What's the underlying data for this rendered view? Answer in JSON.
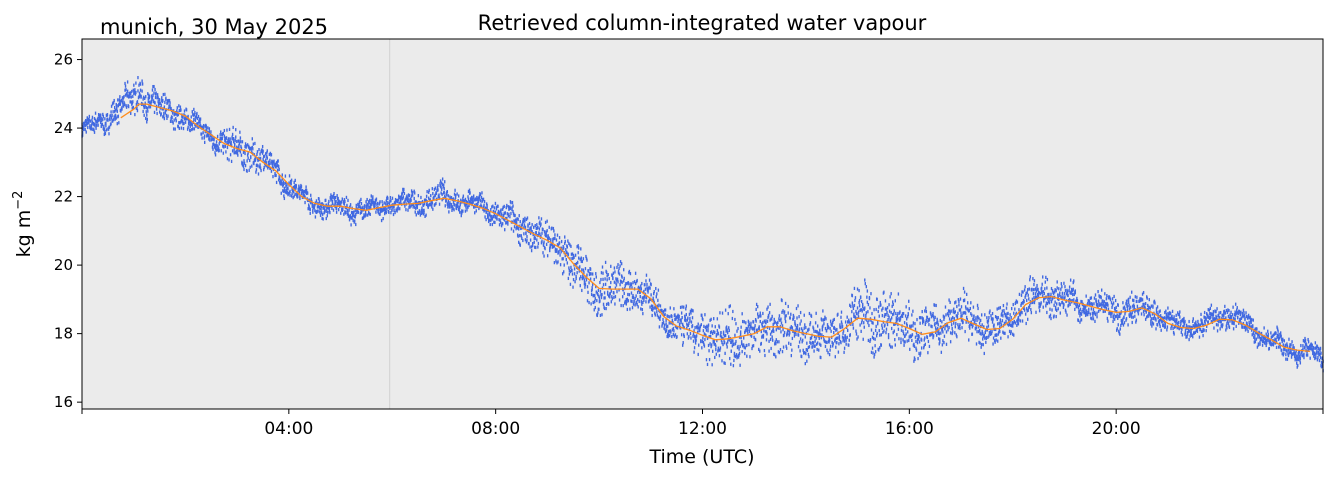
{
  "chart_data": {
    "type": "scatter",
    "title": "Retrieved column-integrated water vapour",
    "subtitle": "munich, 30 May 2025",
    "xlabel": "Time (UTC)",
    "ylabel_base": "kg m",
    "ylabel_exp": "−2",
    "xlim": [
      0,
      24
    ],
    "ylim": [
      15.8,
      26.6
    ],
    "yticks": [
      16,
      18,
      20,
      22,
      24,
      26
    ],
    "ytick_labels": [
      "16",
      "18",
      "20",
      "22",
      "24",
      "26"
    ],
    "xticks": [
      4,
      8,
      12,
      16,
      20
    ],
    "xtick_labels": [
      "04:00",
      "08:00",
      "12:00",
      "16:00",
      "20:00"
    ],
    "minor_xticks": [
      0,
      24
    ],
    "grid": false,
    "background": "#ebebeb",
    "vline_x": 5.95,
    "colors": {
      "raw": "#4169e1",
      "smooth": "#ff8c1a"
    },
    "series": [
      {
        "kind": "raw-scatter",
        "x": [
          0.0,
          0.25,
          0.5,
          0.75,
          1.0,
          1.1,
          1.25,
          1.5,
          1.75,
          2.0,
          2.25,
          2.5,
          2.75,
          3.0,
          3.25,
          3.5,
          3.75,
          4.0,
          4.25,
          4.5,
          4.75,
          5.0,
          5.25,
          5.5,
          5.75,
          6.0,
          6.25,
          6.5,
          6.75,
          7.0,
          7.25,
          7.5,
          7.75,
          8.0,
          8.25,
          8.5,
          8.75,
          9.0,
          9.25,
          9.5,
          9.75,
          10.0,
          10.25,
          10.5,
          10.75,
          11.0,
          11.25,
          11.5,
          11.75,
          12.0,
          12.25,
          12.5,
          12.75,
          13.0,
          13.25,
          13.5,
          13.75,
          14.0,
          14.25,
          14.5,
          14.75,
          15.0,
          15.25,
          15.5,
          15.75,
          16.0,
          16.25,
          16.5,
          16.75,
          17.0,
          17.25,
          17.5,
          17.75,
          18.0,
          18.25,
          18.5,
          18.75,
          19.0,
          19.25,
          19.5,
          19.75,
          20.0,
          20.25,
          20.5,
          20.75,
          21.0,
          21.25,
          21.5,
          21.75,
          22.0,
          22.25,
          22.5,
          22.75,
          23.0,
          23.25,
          23.5,
          23.75,
          24.0
        ],
        "y": [
          23.9,
          24.1,
          24.3,
          24.6,
          24.9,
          25.1,
          24.8,
          24.6,
          24.5,
          24.3,
          24.0,
          23.8,
          23.5,
          23.4,
          23.3,
          23.0,
          22.8,
          22.3,
          22.0,
          21.8,
          21.7,
          21.7,
          21.6,
          21.6,
          21.7,
          21.8,
          21.8,
          21.8,
          21.9,
          22.0,
          21.9,
          21.8,
          21.7,
          21.5,
          21.3,
          21.1,
          20.9,
          20.7,
          20.5,
          20.0,
          19.6,
          19.3,
          19.4,
          19.3,
          19.3,
          19.0,
          18.5,
          18.2,
          18.1,
          18.0,
          17.8,
          17.9,
          17.9,
          18.0,
          18.2,
          18.2,
          18.1,
          18.0,
          17.9,
          17.9,
          18.2,
          18.6,
          18.5,
          18.4,
          18.3,
          18.2,
          18.0,
          18.1,
          18.4,
          18.5,
          18.3,
          18.1,
          18.2,
          18.5,
          18.9,
          19.1,
          19.1,
          19.0,
          18.9,
          18.8,
          18.7,
          18.6,
          18.7,
          18.8,
          18.6,
          18.3,
          18.2,
          18.2,
          18.3,
          18.5,
          18.5,
          18.3,
          18.0,
          17.8,
          17.6,
          17.5,
          17.5,
          17.2
        ],
        "spread": [
          0.25,
          0.3,
          0.35,
          0.4,
          0.5,
          0.5,
          0.45,
          0.4,
          0.4,
          0.35,
          0.3,
          0.3,
          0.4,
          0.6,
          0.5,
          0.4,
          0.4,
          0.35,
          0.3,
          0.3,
          0.3,
          0.3,
          0.3,
          0.3,
          0.3,
          0.3,
          0.3,
          0.35,
          0.35,
          0.35,
          0.35,
          0.3,
          0.3,
          0.35,
          0.45,
          0.5,
          0.5,
          0.55,
          0.6,
          0.65,
          0.7,
          0.8,
          0.7,
          0.7,
          0.6,
          0.6,
          0.5,
          0.6,
          0.6,
          0.7,
          0.8,
          0.9,
          0.8,
          0.7,
          0.7,
          0.8,
          0.8,
          0.7,
          0.7,
          0.6,
          0.6,
          0.9,
          1.0,
          0.9,
          0.9,
          0.8,
          0.7,
          0.6,
          0.7,
          0.7,
          0.6,
          0.6,
          0.5,
          0.5,
          0.6,
          0.6,
          0.55,
          0.5,
          0.45,
          0.4,
          0.4,
          0.45,
          0.5,
          0.45,
          0.4,
          0.35,
          0.35,
          0.35,
          0.35,
          0.35,
          0.35,
          0.3,
          0.3,
          0.3,
          0.3,
          0.3,
          0.3,
          0.3
        ]
      },
      {
        "kind": "smoothed-line",
        "x": [
          0.75,
          1.0,
          1.1,
          1.25,
          1.5,
          1.75,
          2.0,
          2.25,
          2.5,
          2.75,
          3.0,
          3.25,
          3.5,
          3.75,
          4.0,
          4.25,
          4.5,
          4.75,
          5.0,
          5.25,
          5.5,
          5.75,
          6.0,
          6.25,
          6.5,
          6.75,
          7.0,
          7.25,
          7.5,
          7.75,
          8.0,
          8.25,
          8.5,
          8.75,
          9.0,
          9.25,
          9.5,
          9.75,
          10.0,
          10.25,
          10.5,
          10.75,
          11.0,
          11.25,
          11.5,
          11.75,
          12.0,
          12.25,
          12.5,
          12.75,
          13.0,
          13.25,
          13.5,
          13.75,
          14.0,
          14.25,
          14.5,
          14.75,
          15.0,
          15.25,
          15.5,
          15.75,
          16.0,
          16.25,
          16.5,
          16.75,
          17.0,
          17.25,
          17.5,
          17.75,
          18.0,
          18.25,
          18.5,
          18.75,
          19.0,
          19.25,
          19.5,
          19.75,
          20.0,
          20.25,
          20.5,
          20.75,
          21.0,
          21.25,
          21.5,
          21.75,
          22.0,
          22.25,
          22.5,
          22.75,
          23.0,
          23.25,
          23.5,
          23.75
        ],
        "y": [
          24.3,
          24.55,
          24.7,
          24.7,
          24.6,
          24.5,
          24.35,
          24.05,
          23.8,
          23.55,
          23.4,
          23.3,
          23.0,
          22.75,
          22.35,
          22.0,
          21.8,
          21.72,
          21.72,
          21.65,
          21.6,
          21.68,
          21.75,
          21.78,
          21.8,
          21.88,
          21.95,
          21.88,
          21.78,
          21.66,
          21.5,
          21.3,
          21.1,
          20.9,
          20.72,
          20.5,
          20.05,
          19.65,
          19.32,
          19.3,
          19.3,
          19.3,
          19.02,
          18.5,
          18.22,
          18.1,
          17.95,
          17.82,
          17.85,
          17.92,
          18.0,
          18.2,
          18.2,
          18.08,
          18.0,
          17.92,
          17.9,
          18.15,
          18.45,
          18.42,
          18.35,
          18.3,
          18.15,
          17.98,
          18.05,
          18.32,
          18.45,
          18.28,
          18.12,
          18.15,
          18.42,
          18.85,
          19.05,
          19.08,
          18.98,
          18.9,
          18.8,
          18.7,
          18.62,
          18.65,
          18.75,
          18.58,
          18.3,
          18.18,
          18.15,
          18.25,
          18.42,
          18.4,
          18.25,
          18.02,
          17.82,
          17.6,
          17.52,
          17.48
        ]
      }
    ]
  }
}
